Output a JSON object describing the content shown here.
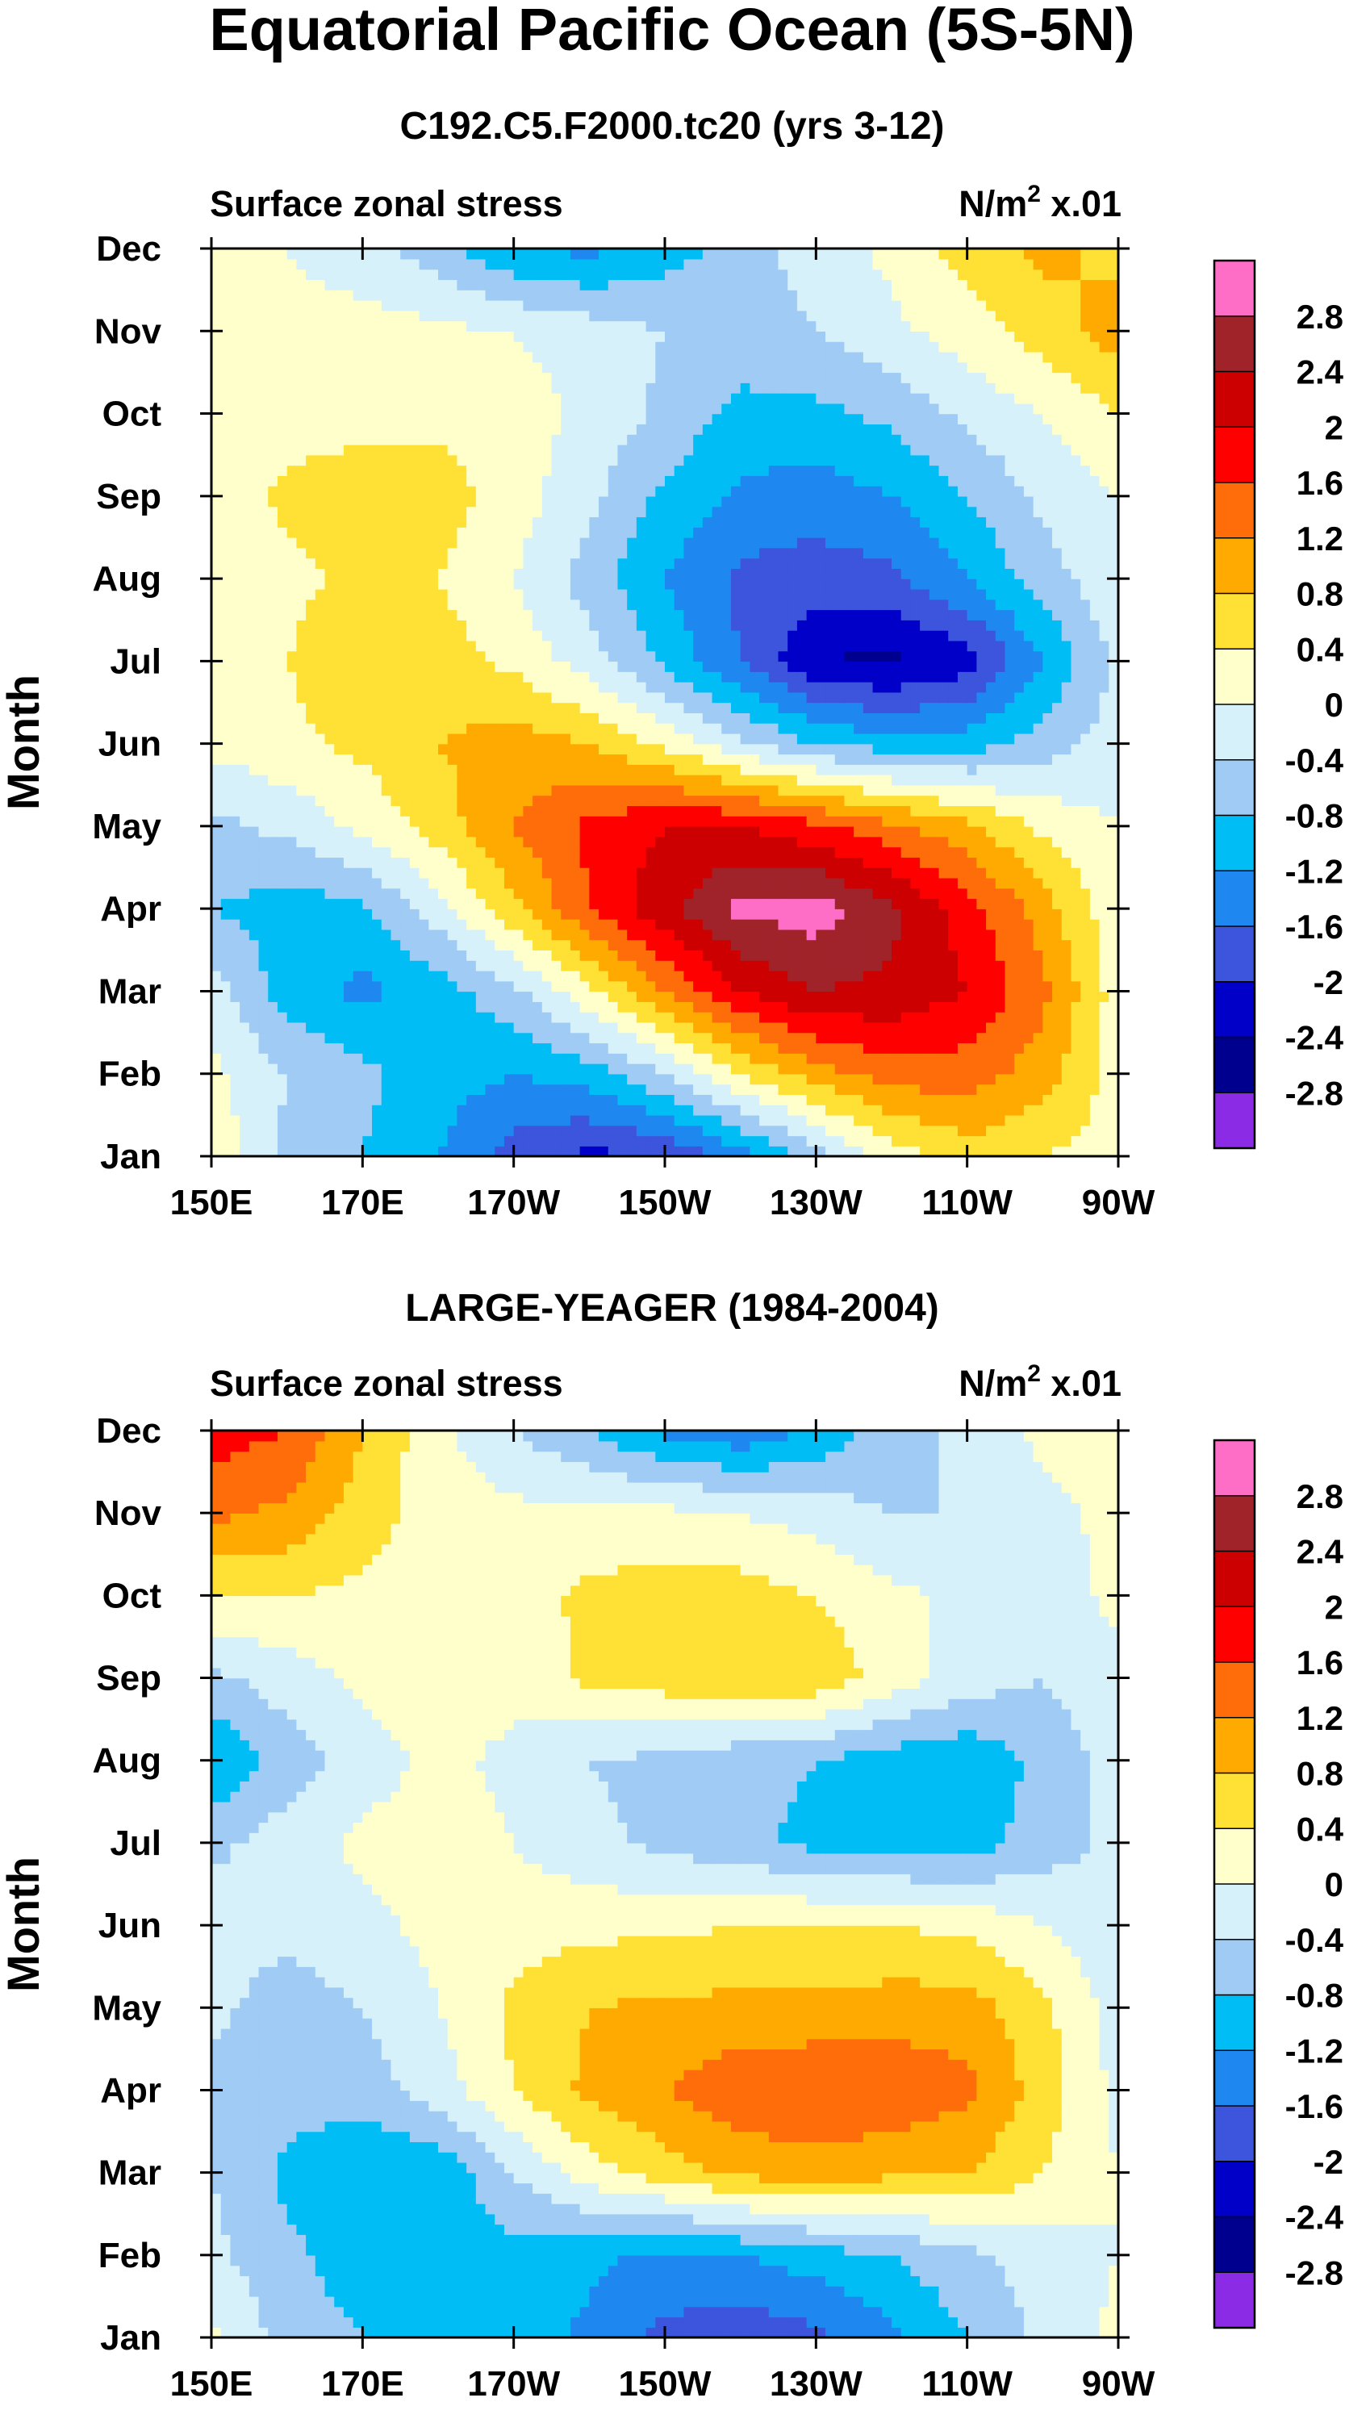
{
  "figure_title": "Equatorial Pacific Ocean (5S-5N)",
  "colors": {
    "levels": [
      "#8B2BE6",
      "#00008F",
      "#0000C8",
      "#3C55DC",
      "#1E88F0",
      "#00BEF5",
      "#A0CBF5",
      "#D7F1FA",
      "#FFFFCC",
      "#FFE135",
      "#FFAA00",
      "#FF6D0B",
      "#FF0000",
      "#CC0000",
      "#A0232A",
      "#FF6EC6"
    ]
  },
  "chart_data": [
    {
      "type": "heatmap",
      "subtype": "filled-contour",
      "title": "C192.C5.F2000.tc20 (yrs 3-12)",
      "left_label": "Surface zonal stress",
      "units_prefix": "N/m",
      "units_exp": "2",
      "units_suffix": " x.01",
      "ylabel": "Month",
      "x_ticks": [
        "150E",
        "170E",
        "170W",
        "150W",
        "130W",
        "110W",
        "90W"
      ],
      "y_ticks": [
        "Jan",
        "Feb",
        "Mar",
        "Apr",
        "May",
        "Jun",
        "Jul",
        "Aug",
        "Sep",
        "Oct",
        "Nov",
        "Dec"
      ],
      "xlim": [
        150,
        270
      ],
      "contour_levels": [
        "2.8",
        "2.4",
        "2",
        "1.6",
        "1.2",
        "0.8",
        "0.4",
        "0",
        "-0.4",
        "-0.8",
        "-1.2",
        "-1.6",
        "-2",
        "-2.4",
        "-2.8"
      ],
      "x_lon": [
        150,
        160,
        170,
        180,
        190,
        200,
        210,
        220,
        230,
        240,
        250,
        260,
        270
      ],
      "z": [
        [
          0.3,
          -0.5,
          -0.8,
          -1.2,
          -1.8,
          -2.1,
          -2.0,
          -1.4,
          -0.6,
          0.2,
          0.6,
          0.4,
          0.2
        ],
        [
          0.1,
          -0.4,
          -0.7,
          -1.0,
          -1.2,
          -1.0,
          -0.4,
          0.4,
          1.0,
          1.4,
          1.4,
          1.0,
          0.2
        ],
        [
          -0.2,
          -1.0,
          -1.3,
          -1.0,
          -0.5,
          0.3,
          1.2,
          2.0,
          2.4,
          2.3,
          2.0,
          1.3,
          0.2
        ],
        [
          -0.8,
          -1.0,
          -0.9,
          -0.2,
          0.7,
          1.6,
          2.3,
          2.9,
          3.0,
          2.5,
          1.8,
          1.0,
          0.1
        ],
        [
          -0.5,
          -0.3,
          0.1,
          0.6,
          1.2,
          1.7,
          2.0,
          2.0,
          1.7,
          1.3,
          0.9,
          0.3,
          0.0
        ],
        [
          0.1,
          0.3,
          0.5,
          0.8,
          1.0,
          0.8,
          0.3,
          -0.3,
          -0.8,
          -1.0,
          -1.0,
          -0.6,
          -0.2
        ],
        [
          0.3,
          0.4,
          0.7,
          0.6,
          0.3,
          -0.2,
          -0.9,
          -1.6,
          -2.4,
          -2.5,
          -2.2,
          -1.2,
          -0.3
        ],
        [
          0.1,
          0.3,
          0.5,
          0.4,
          0.0,
          -0.6,
          -1.2,
          -1.7,
          -1.8,
          -1.7,
          -1.2,
          -0.6,
          -0.1
        ],
        [
          0.1,
          0.5,
          0.6,
          0.6,
          0.2,
          -0.3,
          -0.9,
          -1.3,
          -1.4,
          -1.2,
          -0.8,
          -0.3,
          0.0
        ],
        [
          0.1,
          0.2,
          0.3,
          0.3,
          0.2,
          -0.1,
          -0.5,
          -0.9,
          -0.9,
          -0.7,
          -0.3,
          0.0,
          0.4
        ],
        [
          0.1,
          0.2,
          0.2,
          0.1,
          0.0,
          -0.2,
          -0.4,
          -0.6,
          -0.4,
          -0.1,
          0.2,
          0.6,
          1.0
        ],
        [
          0.3,
          0.0,
          -0.3,
          -0.6,
          -1.2,
          -1.3,
          -1.0,
          -0.6,
          -0.2,
          0.1,
          0.6,
          0.9,
          0.7
        ]
      ]
    },
    {
      "type": "heatmap",
      "subtype": "filled-contour",
      "title": "LARGE-YEAGER (1984-2004)",
      "left_label": "Surface zonal stress",
      "units_prefix": "N/m",
      "units_exp": "2",
      "units_suffix": " x.01",
      "ylabel": "Month",
      "x_ticks": [
        "150E",
        "170E",
        "170W",
        "150W",
        "130W",
        "110W",
        "90W"
      ],
      "y_ticks": [
        "Jan",
        "Feb",
        "Mar",
        "Apr",
        "May",
        "Jun",
        "Jul",
        "Aug",
        "Sep",
        "Oct",
        "Nov",
        "Dec"
      ],
      "xlim": [
        150,
        270
      ],
      "contour_levels": [
        "2.8",
        "2.4",
        "2",
        "1.6",
        "1.2",
        "0.8",
        "0.4",
        "0",
        "-0.4",
        "-0.8",
        "-1.2",
        "-1.6",
        "-2",
        "-2.4",
        "-2.8"
      ],
      "x_lon": [
        150,
        160,
        170,
        180,
        190,
        200,
        210,
        220,
        230,
        240,
        250,
        260,
        270
      ],
      "z": [
        [
          0.1,
          -0.6,
          -0.8,
          -0.9,
          -1.0,
          -1.3,
          -1.7,
          -1.9,
          -1.7,
          -1.3,
          -0.8,
          -0.3,
          0.1
        ],
        [
          -0.3,
          -0.7,
          -1.0,
          -1.1,
          -0.9,
          -1.1,
          -1.3,
          -1.2,
          -1.0,
          -0.8,
          -0.5,
          -0.2,
          0.0
        ],
        [
          -0.4,
          -0.9,
          -1.2,
          -1.1,
          -0.4,
          0.2,
          0.6,
          0.9,
          1.0,
          0.9,
          0.8,
          0.4,
          0.0
        ],
        [
          -0.5,
          -0.6,
          -0.6,
          -0.2,
          0.4,
          0.9,
          1.2,
          1.5,
          1.6,
          1.5,
          1.3,
          0.6,
          -0.1
        ],
        [
          -0.3,
          -0.6,
          -0.4,
          0.0,
          0.5,
          0.8,
          0.9,
          0.9,
          0.9,
          1.0,
          1.0,
          0.5,
          -0.2
        ],
        [
          -0.2,
          -0.3,
          -0.1,
          0.1,
          0.2,
          0.3,
          0.3,
          0.4,
          0.4,
          0.4,
          0.3,
          0.0,
          -0.3
        ],
        [
          -0.5,
          -0.2,
          0.1,
          0.2,
          0.0,
          -0.3,
          -0.5,
          -0.7,
          -0.9,
          -1.0,
          -1.0,
          -0.6,
          -0.3
        ],
        [
          -1.2,
          -0.6,
          -0.2,
          0.1,
          -0.1,
          -0.4,
          -0.5,
          -0.7,
          -0.8,
          -1.0,
          -1.1,
          -0.7,
          -0.2
        ],
        [
          -0.5,
          -0.2,
          0.1,
          0.3,
          0.1,
          0.5,
          0.6,
          0.8,
          0.7,
          0.2,
          -0.2,
          -0.4,
          -0.1
        ],
        [
          0.4,
          0.4,
          0.3,
          0.2,
          0.2,
          0.5,
          0.6,
          0.6,
          0.4,
          0.1,
          -0.1,
          -0.2,
          0.1
        ],
        [
          1.3,
          1.1,
          0.6,
          0.2,
          0.1,
          0.1,
          0.1,
          0.0,
          -0.2,
          -0.4,
          -0.4,
          -0.1,
          0.1
        ],
        [
          1.8,
          1.6,
          0.8,
          0.1,
          -0.4,
          -0.8,
          -1.3,
          -1.5,
          -1.1,
          -0.6,
          -0.3,
          0.1,
          0.2
        ]
      ]
    }
  ]
}
